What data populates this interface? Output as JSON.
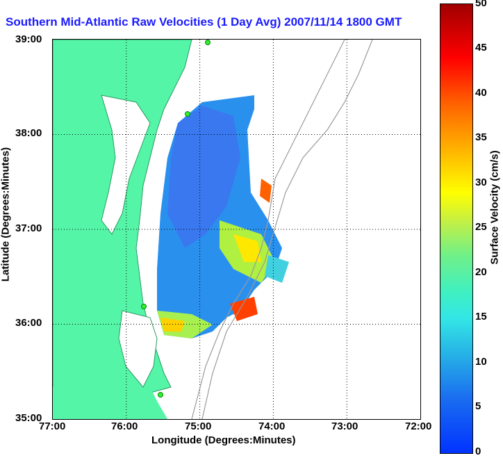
{
  "title": "Southern Mid-Atlantic Raw Velocities (1 Day Avg) 2007/11/14 1800 GMT",
  "map": {
    "xlabel": "Longitude (Degrees:Minutes)",
    "ylabel": "Latitude (Degrees:Minutes)",
    "lon_ticks": [
      "77:00",
      "76:00",
      "75:00",
      "74:00",
      "73:00",
      "72:00"
    ],
    "lat_ticks": [
      "39:00",
      "38:00",
      "37:00",
      "36:00",
      "35:00"
    ],
    "lon_range": [
      -77,
      -72
    ],
    "lat_range": [
      35,
      39
    ],
    "grid": "dotted",
    "land_color": "#55f5a8"
  },
  "colorbar": {
    "label": "Surface Velocity (cm/s)",
    "ticks": [
      "50",
      "45",
      "40",
      "35",
      "30",
      "25",
      "20",
      "15",
      "10",
      "5",
      "0"
    ],
    "range": [
      0,
      50
    ]
  },
  "stations": [
    {
      "lon": -75.1,
      "lat": 39.0
    },
    {
      "lon": -75.15,
      "lat": 38.2
    },
    {
      "lon": -75.75,
      "lat": 36.17
    },
    {
      "lon": -75.5,
      "lat": 35.25
    }
  ]
}
